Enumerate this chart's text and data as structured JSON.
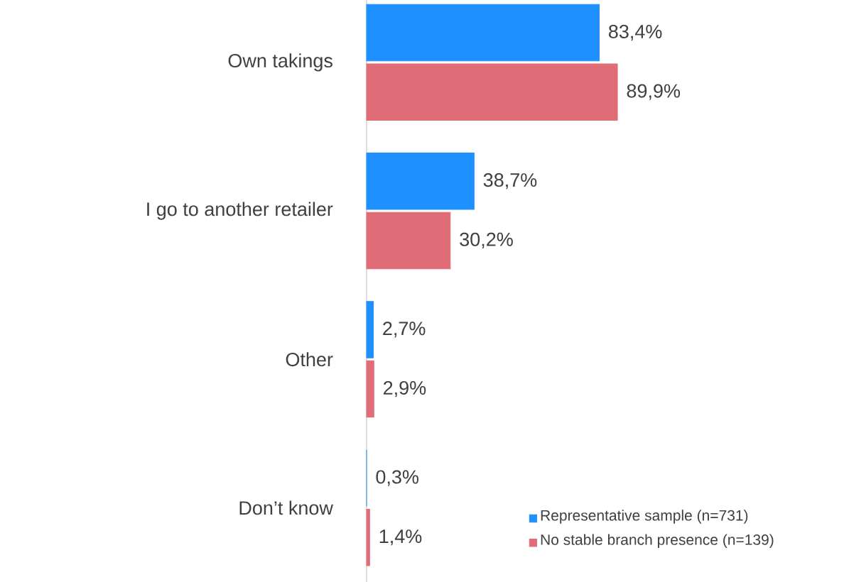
{
  "chart_data": {
    "type": "bar",
    "orientation": "horizontal",
    "categories": [
      "Own takings",
      "I go to another retailer",
      "Other",
      "Don’t know"
    ],
    "series": [
      {
        "name": "Representative sample (n=731)",
        "color": "#1e90ff",
        "values": [
          83.4,
          38.7,
          2.7,
          0.3
        ],
        "value_labels": [
          "83,4%",
          "38,7%",
          "2,7%",
          "0,3%"
        ]
      },
      {
        "name": "No stable branch presence (n=139)",
        "color": "#e06c78",
        "values": [
          89.9,
          30.2,
          2.9,
          1.4
        ],
        "value_labels": [
          "89,9%",
          "30,2%",
          "2,9%",
          "1,4%"
        ]
      }
    ],
    "tick_labels": "y",
    "legend": "bottom right"
  }
}
